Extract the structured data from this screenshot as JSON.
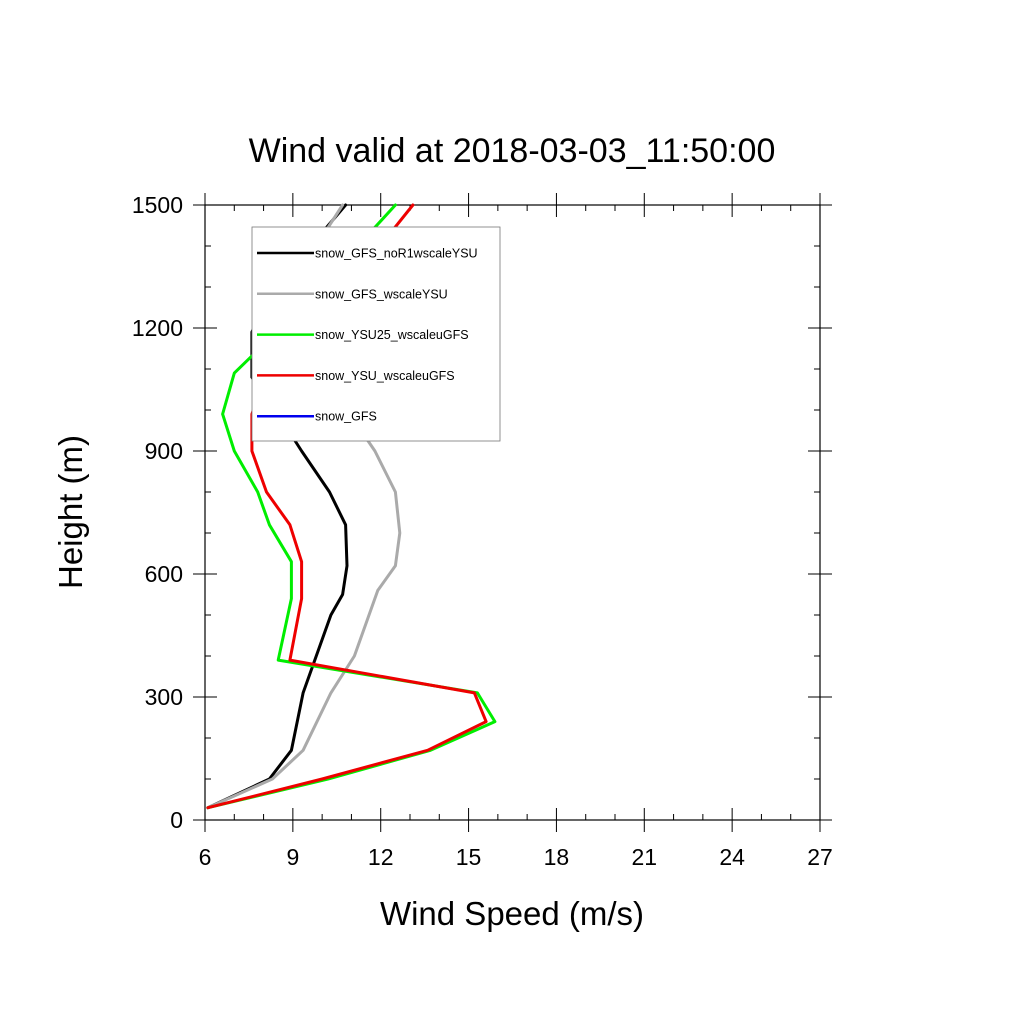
{
  "chart_data": {
    "type": "line",
    "title": "Wind valid at 2018-03-03_11:50:00",
    "xlabel": "Wind Speed (m/s)",
    "ylabel": "Height (m)",
    "xlim": [
      6,
      27
    ],
    "ylim": [
      0,
      1500
    ],
    "xticks": [
      "6",
      "9",
      "12",
      "15",
      "18",
      "21",
      "24",
      "27"
    ],
    "yticks": [
      "0",
      "300",
      "600",
      "900",
      "1200",
      "1500"
    ],
    "grid": false,
    "legend_position": "top-left",
    "series": [
      {
        "name": "snow_GFS_noR1wscaleYSU",
        "color": "#000000",
        "points": [
          [
            6.1,
            30
          ],
          [
            8.2,
            100
          ],
          [
            8.95,
            170
          ],
          [
            9.35,
            310
          ],
          [
            10.3,
            500
          ],
          [
            10.7,
            550
          ],
          [
            10.85,
            620
          ],
          [
            10.8,
            720
          ],
          [
            10.25,
            800
          ],
          [
            9.3,
            900
          ],
          [
            8.4,
            1000
          ],
          [
            7.6,
            1080
          ],
          [
            7.6,
            1190
          ],
          [
            8.3,
            1290
          ],
          [
            10.8,
            1500
          ]
        ]
      },
      {
        "name": "snow_GFS_wscaleYSU",
        "color": "#aaaaaa",
        "points": [
          [
            6.1,
            30
          ],
          [
            8.3,
            100
          ],
          [
            9.35,
            170
          ],
          [
            10.3,
            310
          ],
          [
            11.1,
            400
          ],
          [
            11.9,
            560
          ],
          [
            12.5,
            620
          ],
          [
            12.65,
            700
          ],
          [
            12.5,
            800
          ],
          [
            11.8,
            900
          ],
          [
            9.9,
            1100
          ],
          [
            8.8,
            1190
          ],
          [
            8.8,
            1290
          ],
          [
            10.7,
            1500
          ]
        ]
      },
      {
        "name": "snow_YSU25_wscaleuGFS",
        "color": "#00ee00",
        "points": [
          [
            6.1,
            30
          ],
          [
            10.2,
            100
          ],
          [
            13.7,
            170
          ],
          [
            15.9,
            240
          ],
          [
            15.3,
            310
          ],
          [
            8.5,
            390
          ],
          [
            8.95,
            540
          ],
          [
            8.95,
            630
          ],
          [
            8.2,
            720
          ],
          [
            7.8,
            800
          ],
          [
            7.0,
            900
          ],
          [
            6.6,
            990
          ],
          [
            7.0,
            1090
          ],
          [
            9.3,
            1250
          ],
          [
            12.5,
            1500
          ]
        ]
      },
      {
        "name": "snow_YSU_wscaleuGFS",
        "color": "#ee0000",
        "points": [
          [
            6.1,
            30
          ],
          [
            10.0,
            100
          ],
          [
            13.6,
            170
          ],
          [
            15.6,
            240
          ],
          [
            15.2,
            310
          ],
          [
            8.9,
            390
          ],
          [
            9.3,
            540
          ],
          [
            9.3,
            630
          ],
          [
            8.9,
            720
          ],
          [
            8.1,
            800
          ],
          [
            7.6,
            900
          ],
          [
            7.6,
            990
          ],
          [
            8.1,
            1090
          ],
          [
            9.8,
            1250
          ],
          [
            12.2,
            1420
          ],
          [
            13.1,
            1500
          ]
        ]
      },
      {
        "name": "snow_GFS",
        "color": "#0000ee",
        "points": []
      }
    ]
  }
}
